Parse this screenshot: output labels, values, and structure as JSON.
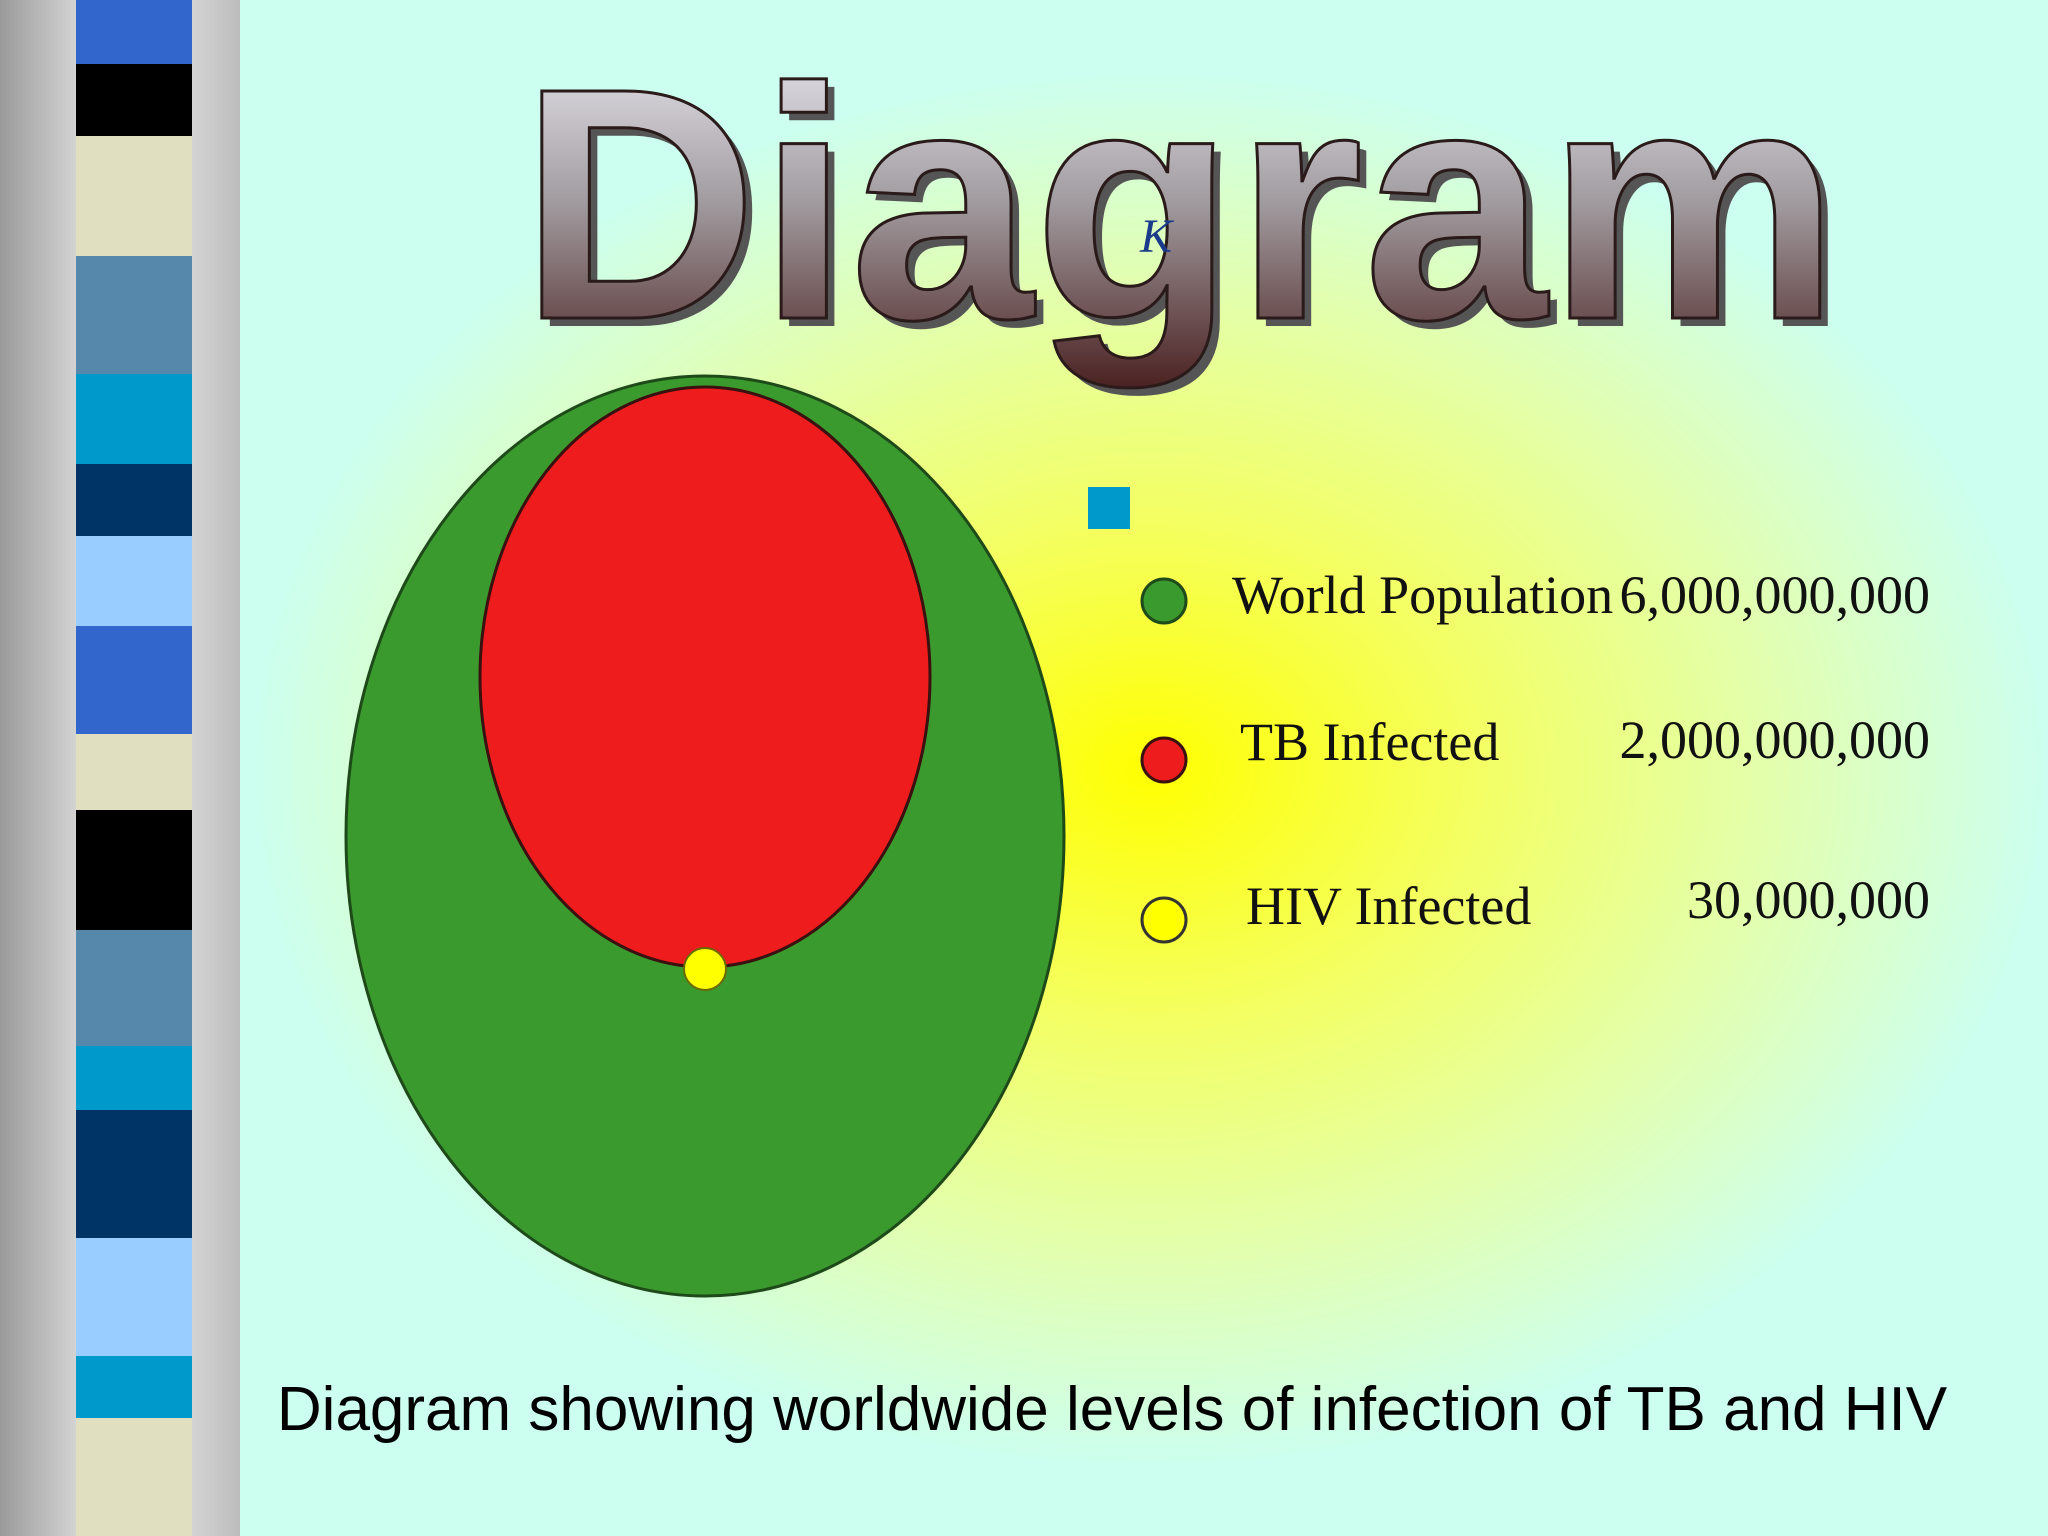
{
  "title": {
    "text": "Diagram",
    "stray_glyph": "K"
  },
  "legend": {
    "items": [
      {
        "label": "World Population",
        "value": "6,000,000,000"
      },
      {
        "label": "TB Infected",
        "value": "2,000,000,000"
      },
      {
        "label": "HIV Infected",
        "value": "30,000,000"
      }
    ]
  },
  "caption": "Diagram showing worldwide levels of infection of TB and HIV"
}
